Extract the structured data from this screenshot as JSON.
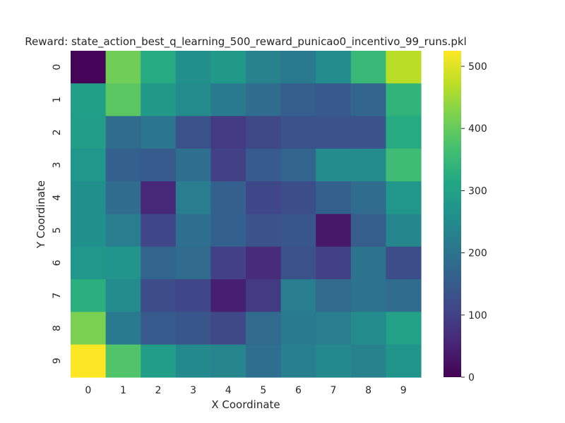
{
  "chart_data": {
    "type": "heatmap",
    "title": "Reward: state_action_best_q_learning_500_reward_punicao0_incentivo_99_runs.pkl",
    "xlabel": "X Coordinate",
    "ylabel": "Y Coordinate",
    "x_categories": [
      "0",
      "1",
      "2",
      "3",
      "4",
      "5",
      "6",
      "7",
      "8",
      "9"
    ],
    "y_categories": [
      "0",
      "1",
      "2",
      "3",
      "4",
      "5",
      "6",
      "7",
      "8",
      "9"
    ],
    "values": [
      [
        5,
        410,
        320,
        260,
        280,
        230,
        215,
        255,
        350,
        470
      ],
      [
        295,
        390,
        280,
        250,
        215,
        185,
        155,
        145,
        170,
        340
      ],
      [
        290,
        185,
        205,
        130,
        90,
        115,
        135,
        135,
        135,
        320
      ],
      [
        275,
        160,
        150,
        190,
        100,
        150,
        170,
        255,
        250,
        360
      ],
      [
        260,
        185,
        60,
        220,
        160,
        110,
        125,
        160,
        185,
        275
      ],
      [
        260,
        220,
        110,
        190,
        160,
        135,
        140,
        35,
        155,
        240
      ],
      [
        275,
        270,
        170,
        180,
        100,
        65,
        130,
        100,
        200,
        125
      ],
      [
        330,
        250,
        120,
        110,
        45,
        90,
        220,
        180,
        200,
        185
      ],
      [
        420,
        215,
        150,
        140,
        115,
        180,
        215,
        220,
        250,
        300
      ],
      [
        525,
        380,
        290,
        245,
        235,
        190,
        225,
        245,
        230,
        270
      ]
    ],
    "vmin": 0,
    "vmax": 525,
    "colorbar_ticks": [
      0,
      100,
      200,
      300,
      400,
      500
    ],
    "colormap": "viridis"
  }
}
